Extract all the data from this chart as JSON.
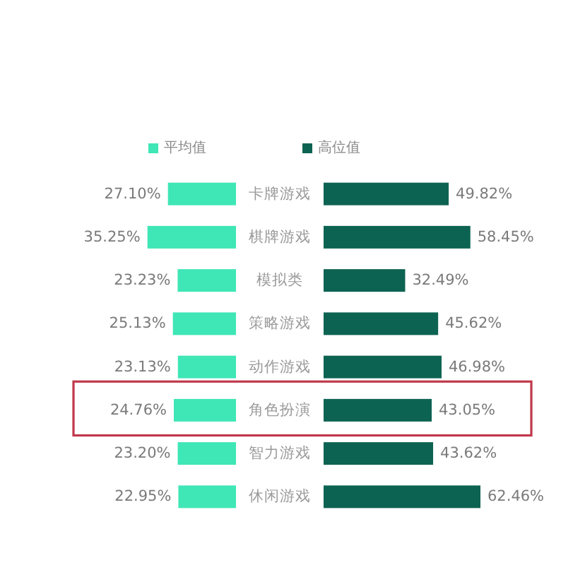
{
  "chart_data": [
    {
      "type": "bar",
      "orientation": "horizontal",
      "categories": [
        "卡牌游戏",
        "棋牌游戏",
        "模拟类",
        "策略游戏",
        "动作游戏",
        "角色扮演",
        "智力游戏",
        "休闲游戏"
      ],
      "series": [
        {
          "name": "平均值",
          "color": "#3fe6b6",
          "values": [
            27.1,
            35.25,
            23.23,
            25.13,
            23.13,
            24.76,
            23.2,
            22.95
          ],
          "value_labels": [
            "27.10%",
            "35.25%",
            "23.23%",
            "25.13%",
            "23.13%",
            "24.76%",
            "23.20%",
            "22.95%"
          ]
        }
      ],
      "legend": "top"
    },
    {
      "type": "bar",
      "orientation": "horizontal",
      "categories": [
        "卡牌游戏",
        "棋牌游戏",
        "模拟类",
        "策略游戏",
        "动作游戏",
        "角色扮演",
        "智力游戏",
        "休闲游戏"
      ],
      "series": [
        {
          "name": "高位值",
          "color": "#0d6352",
          "values": [
            49.82,
            58.45,
            32.49,
            45.62,
            46.98,
            43.05,
            43.62,
            62.46
          ],
          "value_labels": [
            "49.82%",
            "58.45%",
            "32.49%",
            "45.62%",
            "46.98%",
            "43.05%",
            "43.62%",
            "62.46%"
          ]
        }
      ],
      "legend": "top",
      "tick_labels": false
    }
  ]
}
